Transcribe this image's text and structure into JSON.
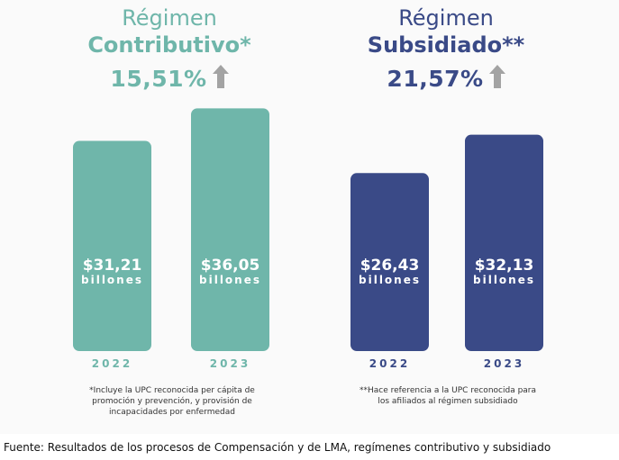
{
  "colors": {
    "contributivo": "#6fb6aa",
    "subsidiado": "#3a4a87",
    "arrow": "#a3a3a3",
    "bar_text": "#ffffff"
  },
  "left": {
    "title_line1": "Régimen",
    "title_line2": "Contributivo*",
    "growth": "15,51%",
    "growth_icon": "arrow-up-icon",
    "note": "*Incluye la UPC reconocida per cápita de promoción y prevención, y provisión de incapacidades por enfermedad"
  },
  "right": {
    "title_line1": "Régimen",
    "title_line2": "Subsidiado**",
    "growth": "21,57%",
    "growth_icon": "arrow-up-icon",
    "note": "**Hace referencia a la UPC reconocida para los afiliados al régimen subsidiado"
  },
  "source": "Fuente: Resultados de los procesos de Compensación y de LMA, regímenes contributivo y subsidiado",
  "chart_data": [
    {
      "type": "bar",
      "title": "Régimen Contributivo*",
      "categories": [
        "2022",
        "2023"
      ],
      "values": [
        31.21,
        36.05
      ],
      "value_labels": [
        "$31,21",
        "$36,05"
      ],
      "unit_label": "billones",
      "growth_label": "15,51%",
      "color": "#6fb6aa"
    },
    {
      "type": "bar",
      "title": "Régimen Subsidiado**",
      "categories": [
        "2022",
        "2023"
      ],
      "values": [
        26.43,
        32.13
      ],
      "value_labels": [
        "$26,43",
        "$32,13"
      ],
      "unit_label": "billones",
      "growth_label": "21,57%",
      "color": "#3a4a87"
    }
  ]
}
